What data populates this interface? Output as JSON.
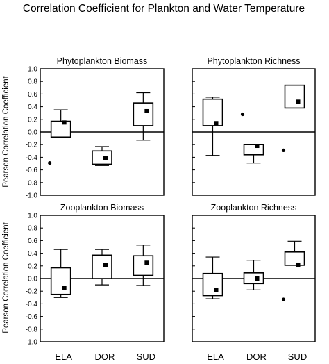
{
  "title": "Correlation Coefficient for Plankton and Water Temperature",
  "ylabel": "Pearson Correlation Coefficient",
  "chart_data": [
    {
      "type": "box",
      "title": "Phytoplankton Biomass",
      "ylabel": "Pearson Correlation Coefficient",
      "categories": [
        "ELA",
        "DOR",
        "SUD"
      ],
      "ylim": [
        -1.0,
        1.0
      ],
      "yticks": [
        "1.0",
        "0.8",
        "0.6",
        "0.4",
        "0.2",
        "0.0",
        "-0.2",
        "-0.4",
        "-0.6",
        "-0.8",
        "-1.0"
      ],
      "boxes": [
        {
          "category": "ELA",
          "whisker_low": -0.08,
          "q1": -0.08,
          "q3": 0.17,
          "whisker_high": 0.35,
          "mean": 0.15,
          "outliers": [
            -0.49
          ]
        },
        {
          "category": "DOR",
          "whisker_low": -0.53,
          "q1": -0.51,
          "q3": -0.3,
          "whisker_high": -0.23,
          "mean": -0.41,
          "outliers": []
        },
        {
          "category": "SUD",
          "whisker_low": -0.13,
          "q1": 0.1,
          "q3": 0.46,
          "whisker_high": 0.62,
          "mean": 0.33,
          "outliers": []
        }
      ]
    },
    {
      "type": "box",
      "title": "Phytoplankton Richness",
      "categories": [
        "ELA",
        "DOR",
        "SUD"
      ],
      "ylim": [
        -1.0,
        1.0
      ],
      "boxes": [
        {
          "category": "ELA",
          "whisker_low": -0.37,
          "q1": 0.1,
          "q3": 0.52,
          "whisker_high": 0.55,
          "mean": 0.14,
          "outliers": []
        },
        {
          "category": "DOR",
          "whisker_low": -0.49,
          "q1": -0.36,
          "q3": -0.2,
          "whisker_high": -0.2,
          "mean": -0.22,
          "outliers": [
            0.28
          ]
        },
        {
          "category": "SUD",
          "whisker_low": 0.38,
          "q1": 0.38,
          "q3": 0.74,
          "whisker_high": 0.74,
          "mean": 0.48,
          "outliers": [
            -0.29
          ]
        }
      ]
    },
    {
      "type": "box",
      "title": "Zooplankton Biomass",
      "ylabel": "Pearson Correlation Coefficient",
      "categories": [
        "ELA",
        "DOR",
        "SUD"
      ],
      "xlabels": [
        "ELA",
        "DOR",
        "SUD"
      ],
      "ylim": [
        -1.0,
        1.0
      ],
      "yticks": [
        "1.0",
        "0.8",
        "0.6",
        "0.4",
        "0.2",
        "0.0",
        "-0.2",
        "-0.4",
        "-0.6",
        "-0.8",
        "-1.0"
      ],
      "boxes": [
        {
          "category": "ELA",
          "whisker_low": -0.3,
          "q1": -0.25,
          "q3": 0.17,
          "whisker_high": 0.46,
          "mean": -0.15,
          "outliers": []
        },
        {
          "category": "DOR",
          "whisker_low": -0.1,
          "q1": 0.0,
          "q3": 0.37,
          "whisker_high": 0.46,
          "mean": 0.21,
          "outliers": []
        },
        {
          "category": "SUD",
          "whisker_low": -0.11,
          "q1": 0.05,
          "q3": 0.36,
          "whisker_high": 0.53,
          "mean": 0.25,
          "outliers": []
        }
      ]
    },
    {
      "type": "box",
      "title": "Zooplankton Richness",
      "categories": [
        "ELA",
        "DOR",
        "SUD"
      ],
      "xlabels": [
        "ELA",
        "DOR",
        "SUD"
      ],
      "ylim": [
        -1.0,
        1.0
      ],
      "boxes": [
        {
          "category": "ELA",
          "whisker_low": -0.32,
          "q1": -0.27,
          "q3": 0.08,
          "whisker_high": 0.34,
          "mean": -0.18,
          "outliers": []
        },
        {
          "category": "DOR",
          "whisker_low": -0.18,
          "q1": -0.08,
          "q3": 0.09,
          "whisker_high": 0.29,
          "mean": 0.0,
          "outliers": []
        },
        {
          "category": "SUD",
          "whisker_low": 0.21,
          "q1": 0.21,
          "q3": 0.42,
          "whisker_high": 0.59,
          "mean": 0.22,
          "outliers": [
            -0.33
          ]
        }
      ]
    }
  ]
}
